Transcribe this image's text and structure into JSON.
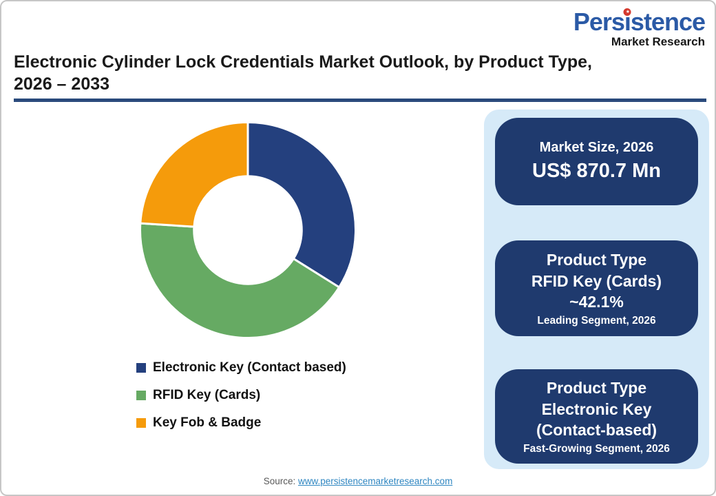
{
  "brand": {
    "name": "Persistence",
    "tagline": "Market Research",
    "name_color": "#2b5aa6",
    "badge_color": "#d4382c"
  },
  "header": {
    "title_line1": "Electronic Cylinder Lock Credentials Market Outlook, by Product Type,",
    "title_line2": "2026 – 2033",
    "rule_color": "#2a4a7c"
  },
  "chart_data": {
    "type": "pie",
    "subtype": "donut",
    "title": "Electronic Cylinder Lock Credentials Market Outlook, by Product Type, 2026 – 2033",
    "labels": [
      "Electronic Key (Contact based)",
      "RFID Key (Cards)",
      "Key Fob & Badge"
    ],
    "values": [
      33.9,
      42.1,
      24.0
    ],
    "unit": "%",
    "colors": [
      "#24407e",
      "#66aa63",
      "#f59b0b"
    ],
    "start_angle_deg": 0,
    "direction": "clockwise",
    "inner_radius_ratio": 0.5,
    "legend_position": "bottom-left"
  },
  "panel": {
    "background_color": "#d6eaf8",
    "card_color": "#1f3a6e",
    "cards": [
      {
        "title": "Market Size, 2026",
        "value": "US$ 870.7 Mn"
      },
      {
        "line1": "Product Type",
        "line2": "RFID Key (Cards)",
        "line3": "~42.1%",
        "footnote": "Leading Segment, 2026"
      },
      {
        "line1": "Product Type",
        "line2": "Electronic Key",
        "line3": "(Contact-based)",
        "footnote": "Fast-Growing Segment, 2026"
      }
    ]
  },
  "footer": {
    "label": "Source:",
    "link": "www.persistencemarketresearch.com"
  }
}
